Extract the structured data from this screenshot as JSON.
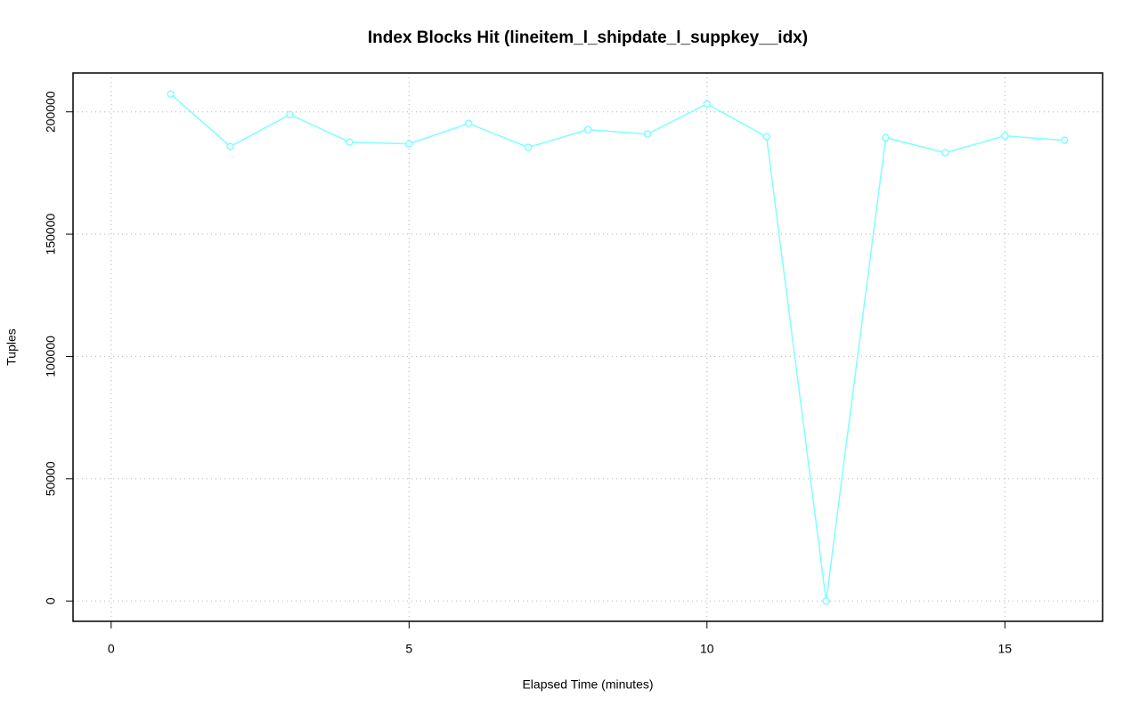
{
  "chart_data": {
    "type": "line",
    "title": "Index Blocks Hit (lineitem_l_shipdate_l_suppkey__idx)",
    "x_label": "Elapsed Time (minutes)",
    "y_label": "Tuples",
    "x": [
      1,
      2,
      3,
      4,
      5,
      6,
      7,
      8,
      9,
      10,
      11,
      12,
      13,
      14,
      15,
      16
    ],
    "series": [
      {
        "name": "Tuples",
        "color": "#7fffff",
        "values": [
          207260,
          185840,
          198900,
          187660,
          186930,
          195280,
          185480,
          192740,
          190920,
          203270,
          189840,
          0,
          189470,
          183300,
          190200,
          188380
        ]
      }
    ],
    "xlim": [
      -0.64,
      16.64
    ],
    "xticks": [
      0,
      5,
      10,
      15
    ],
    "ylim": [
      -8300,
      215900
    ],
    "yticks": [
      0,
      50000,
      100000,
      150000,
      200000
    ],
    "grid": true
  }
}
